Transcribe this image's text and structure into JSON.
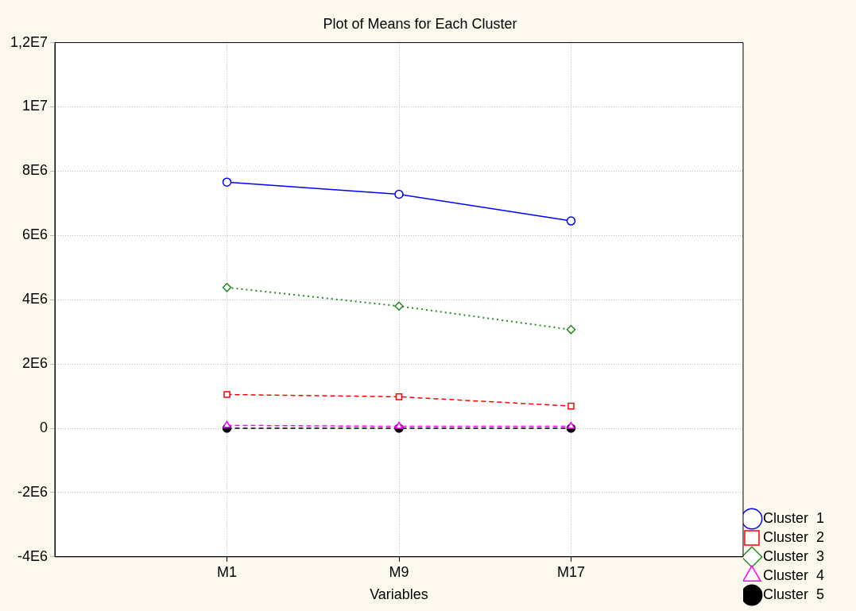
{
  "chart_data": {
    "type": "line",
    "title": "Plot of Means for Each Cluster",
    "xlabel": "Variables",
    "categories": [
      "M1",
      "M9",
      "M17"
    ],
    "series": [
      {
        "name": "Cluster  1",
        "color": "#0000ff",
        "values": [
          7660000,
          7280000,
          6450000
        ],
        "marker": "circle",
        "line_style": "solid"
      },
      {
        "name": "Cluster  2",
        "color": "#ff0000",
        "values": [
          1050000,
          980000,
          690000
        ],
        "marker": "square",
        "line_style": "dashed"
      },
      {
        "name": "Cluster  3",
        "color": "#228b22",
        "values": [
          4380000,
          3800000,
          3070000
        ],
        "marker": "diamond",
        "line_style": "dotted"
      },
      {
        "name": "Cluster  4",
        "color": "#ff00ff",
        "values": [
          90000,
          60000,
          60000
        ],
        "marker": "triangle",
        "line_style": "dashed"
      },
      {
        "name": "Cluster  5",
        "color": "#000000",
        "values": [
          0,
          0,
          0
        ],
        "marker": "circle",
        "line_style": "dashed"
      }
    ],
    "ylim": [
      -4000000,
      12000000
    ],
    "yticks": [
      {
        "value": -4000000,
        "label": "-4E6"
      },
      {
        "value": -2000000,
        "label": "-2E6"
      },
      {
        "value": 0,
        "label": "0"
      },
      {
        "value": 2000000,
        "label": "2E6"
      },
      {
        "value": 4000000,
        "label": "4E6"
      },
      {
        "value": 6000000,
        "label": "6E6"
      },
      {
        "value": 8000000,
        "label": "8E6"
      },
      {
        "value": 10000000,
        "label": "1E7"
      },
      {
        "value": 12000000,
        "label": "1,2E7"
      }
    ],
    "grid": true,
    "legend": "bottom right"
  }
}
